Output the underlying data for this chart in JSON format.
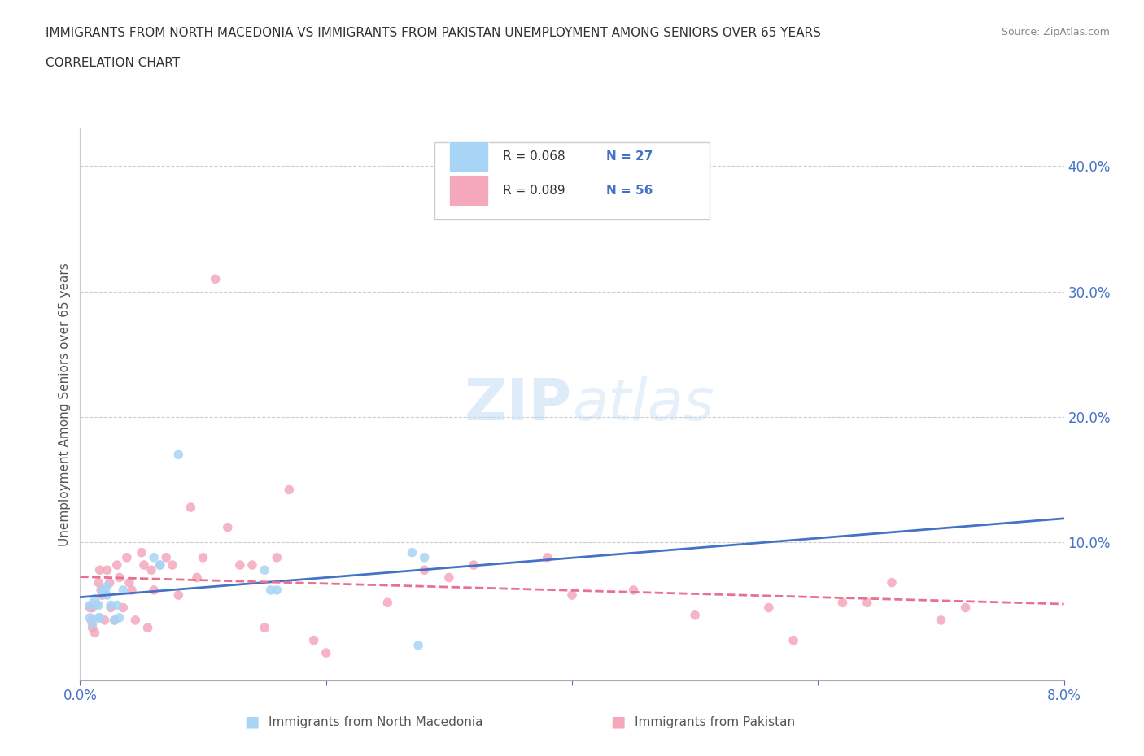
{
  "title_line1": "IMMIGRANTS FROM NORTH MACEDONIA VS IMMIGRANTS FROM PAKISTAN UNEMPLOYMENT AMONG SENIORS OVER 65 YEARS",
  "title_line2": "CORRELATION CHART",
  "source": "Source: ZipAtlas.com",
  "ylabel": "Unemployment Among Seniors over 65 years",
  "xlim": [
    0.0,
    0.08
  ],
  "ylim": [
    -0.01,
    0.43
  ],
  "watermark_zip": "ZIP",
  "watermark_atlas": "atlas",
  "legend_r1": "R = 0.068",
  "legend_n1": "N = 27",
  "legend_r2": "R = 0.089",
  "legend_n2": "N = 56",
  "color_macedonia": "#a8d4f5",
  "color_pakistan": "#f5a8bc",
  "color_blue_text": "#4472c4",
  "trend_color_macedonia": "#4472c4",
  "trend_color_pakistan": "#e87090",
  "macedonia_x": [
    0.0008,
    0.0008,
    0.001,
    0.0012,
    0.0013,
    0.0015,
    0.0015,
    0.0016,
    0.0018,
    0.002,
    0.0022,
    0.0022,
    0.0025,
    0.0028,
    0.003,
    0.0032,
    0.0035,
    0.006,
    0.0065,
    0.0065,
    0.008,
    0.015,
    0.0155,
    0.016,
    0.027,
    0.0275,
    0.028
  ],
  "macedonia_y": [
    0.05,
    0.04,
    0.035,
    0.055,
    0.05,
    0.05,
    0.04,
    0.04,
    0.062,
    0.062,
    0.065,
    0.058,
    0.05,
    0.038,
    0.05,
    0.04,
    0.062,
    0.088,
    0.082,
    0.082,
    0.17,
    0.078,
    0.062,
    0.062,
    0.092,
    0.018,
    0.088
  ],
  "pakistan_x": [
    0.0008,
    0.0009,
    0.001,
    0.001,
    0.0012,
    0.0015,
    0.0016,
    0.0017,
    0.0018,
    0.002,
    0.0022,
    0.0024,
    0.0025,
    0.0028,
    0.003,
    0.0032,
    0.0035,
    0.0038,
    0.004,
    0.0042,
    0.0045,
    0.005,
    0.0052,
    0.0055,
    0.0058,
    0.006,
    0.007,
    0.0075,
    0.008,
    0.009,
    0.0095,
    0.01,
    0.011,
    0.012,
    0.013,
    0.014,
    0.015,
    0.016,
    0.017,
    0.019,
    0.02,
    0.025,
    0.028,
    0.03,
    0.032,
    0.038,
    0.04,
    0.045,
    0.05,
    0.056,
    0.058,
    0.062,
    0.064,
    0.066,
    0.07,
    0.072
  ],
  "pakistan_y": [
    0.048,
    0.038,
    0.048,
    0.032,
    0.028,
    0.068,
    0.078,
    0.062,
    0.058,
    0.038,
    0.078,
    0.068,
    0.048,
    0.038,
    0.082,
    0.072,
    0.048,
    0.088,
    0.068,
    0.062,
    0.038,
    0.092,
    0.082,
    0.032,
    0.078,
    0.062,
    0.088,
    0.082,
    0.058,
    0.128,
    0.072,
    0.088,
    0.31,
    0.112,
    0.082,
    0.082,
    0.032,
    0.088,
    0.142,
    0.022,
    0.012,
    0.052,
    0.078,
    0.072,
    0.082,
    0.088,
    0.058,
    0.062,
    0.042,
    0.048,
    0.022,
    0.052,
    0.052,
    0.068,
    0.038,
    0.048
  ]
}
